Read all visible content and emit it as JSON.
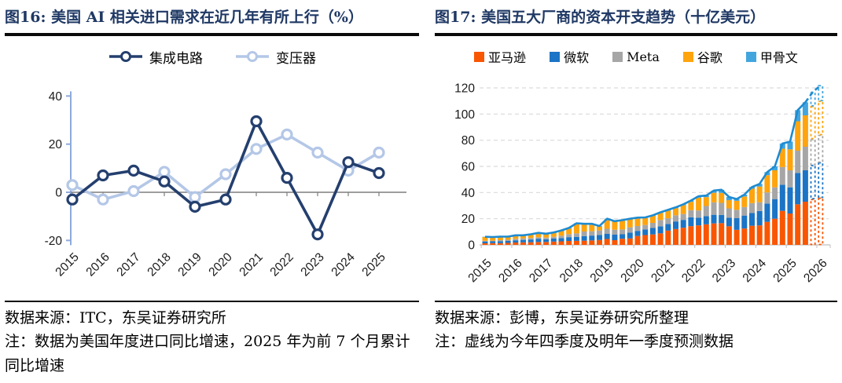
{
  "left_panel": {
    "title": "图16:  美国 AI 相关进口需求在近几年有所上行（%）",
    "source": "数据来源：ITC，东吴证券研究所",
    "note": "注：数据为美国年度进口同比增速，2025 年为前 7 个月累计同比增速"
  },
  "right_panel": {
    "title": "图17:  美国五大厂商的资本开支趋势（十亿美元）",
    "source": "数据来源：彭博，东吴证券研究所整理",
    "note": "注：虚线为今年四季度及明年一季度预测数据"
  },
  "chart_data": [
    {
      "type": "line",
      "title": "美国 AI 相关进口需求在近几年有所上行（%）",
      "categories": [
        "2015",
        "2016",
        "2017",
        "2018",
        "2019",
        "2020",
        "2021",
        "2022",
        "2023",
        "2024",
        "2025"
      ],
      "series": [
        {
          "name": "集成电路",
          "color": "#243F6E",
          "values": [
            -3,
            7,
            9,
            4.5,
            -6,
            -3,
            29.5,
            6,
            -17.5,
            12.5,
            8
          ]
        },
        {
          "name": "变压器",
          "color": "#B4C7E7",
          "values": [
            3,
            -3,
            0.5,
            8.5,
            -2,
            7.5,
            18,
            24,
            16.5,
            9,
            16.5
          ]
        }
      ],
      "ylim": [
        -20,
        40
      ],
      "yticks": [
        -20,
        0,
        20,
        40
      ],
      "legend_position": "top",
      "grid": false,
      "axis_color": "#8EAADB",
      "zero_line_color": "#7F7F7F"
    },
    {
      "type": "bar",
      "stacked": true,
      "title": "美国五大厂商的资本开支趋势（十亿美元）",
      "categories": [
        "2015Q1",
        "2015Q2",
        "2015Q3",
        "2015Q4",
        "2016Q1",
        "2016Q2",
        "2016Q3",
        "2016Q4",
        "2017Q1",
        "2017Q2",
        "2017Q3",
        "2017Q4",
        "2018Q1",
        "2018Q2",
        "2018Q3",
        "2018Q4",
        "2019Q1",
        "2019Q2",
        "2019Q3",
        "2019Q4",
        "2020Q1",
        "2020Q2",
        "2020Q3",
        "2020Q4",
        "2021Q1",
        "2021Q2",
        "2021Q3",
        "2021Q4",
        "2022Q1",
        "2022Q2",
        "2022Q3",
        "2022Q4",
        "2023Q1",
        "2023Q2",
        "2023Q3",
        "2023Q4",
        "2024Q1",
        "2024Q2",
        "2024Q3",
        "2024Q4",
        "2025Q1",
        "2025Q2",
        "2025Q3",
        "2025Q4",
        "2026Q1"
      ],
      "x_tick_labels": [
        "2015",
        "2016",
        "2017",
        "2018",
        "2019",
        "2020",
        "2021",
        "2022",
        "2023",
        "2024",
        "2025",
        "2026"
      ],
      "series": [
        {
          "name": "亚马逊",
          "color": "#F95602",
          "values": [
            1.2,
            1.3,
            1.3,
            1.5,
            1.8,
            1.9,
            2.0,
            2.2,
            2.2,
            2.5,
            2.7,
            3.0,
            3.1,
            3.2,
            3.4,
            3.7,
            4.5,
            3.6,
            4.7,
            4.9,
            6.8,
            7.5,
            8.0,
            8.8,
            10.9,
            12.1,
            13.1,
            14.3,
            14.9,
            15.7,
            16.4,
            16.6,
            14.2,
            11.5,
            12.5,
            14.6,
            14.9,
            17.6,
            20.0,
            26.0,
            24.0,
            31.0,
            33.0,
            35.0,
            36.0
          ]
        },
        {
          "name": "微软",
          "color": "#1B74C5",
          "values": [
            1.4,
            1.4,
            1.5,
            1.5,
            1.7,
            1.9,
            2.1,
            2.5,
            2.1,
            2.3,
            2.5,
            2.9,
            2.9,
            3.5,
            3.7,
            3.9,
            3.9,
            4.2,
            3.4,
            4.5,
            3.9,
            4.3,
            4.9,
            5.4,
            5.1,
            5.8,
            6.0,
            6.8,
            5.9,
            6.3,
            6.6,
            6.3,
            6.6,
            8.9,
            9.9,
            9.7,
            11.0,
            14.0,
            15.0,
            20.0,
            20.0,
            24.0,
            24.0,
            26.0,
            27.0
          ]
        },
        {
          "name": "Meta",
          "color": "#A6A6A6",
          "values": [
            0.5,
            0.5,
            0.8,
            0.9,
            1.1,
            1.2,
            1.1,
            1.1,
            1.3,
            1.4,
            1.8,
            2.3,
            2.8,
            3.5,
            3.3,
            3.4,
            3.9,
            3.8,
            3.7,
            4.0,
            3.7,
            3.4,
            3.9,
            4.8,
            4.3,
            4.7,
            4.5,
            5.4,
            5.5,
            7.7,
            9.5,
            9.2,
            7.1,
            6.4,
            6.5,
            7.6,
            6.7,
            8.5,
            9.0,
            13.5,
            13.0,
            17.0,
            18.0,
            20.0,
            21.0
          ]
        },
        {
          "name": "谷歌",
          "color": "#FFA40D",
          "values": [
            2.9,
            2.5,
            2.4,
            2.1,
            2.4,
            2.1,
            2.6,
            3.1,
            2.5,
            2.8,
            3.5,
            4.3,
            7.3,
            5.5,
            5.3,
            3.1,
            7.3,
            6.1,
            6.7,
            6.1,
            6.0,
            5.4,
            5.4,
            5.5,
            5.9,
            5.5,
            6.8,
            6.4,
            9.8,
            6.8,
            7.3,
            7.6,
            6.3,
            6.9,
            8.1,
            11.0,
            12.0,
            13.2,
            13.0,
            14.0,
            16.0,
            22.5,
            24.0,
            25.0,
            26.0
          ]
        },
        {
          "name": "甲骨文",
          "color": "#42A5DE",
          "values": [
            0.2,
            0.3,
            0.3,
            0.3,
            0.3,
            0.2,
            0.3,
            0.3,
            0.4,
            0.5,
            0.5,
            0.5,
            0.4,
            0.4,
            0.4,
            0.3,
            0.4,
            0.4,
            0.4,
            0.5,
            0.4,
            0.4,
            0.4,
            0.4,
            0.6,
            0.6,
            0.6,
            1.0,
            1.1,
            1.2,
            1.7,
            2.4,
            2.4,
            1.3,
            1.4,
            1.3,
            2.0,
            2.3,
            3.0,
            4.0,
            6.0,
            8.5,
            10.0,
            11.0,
            12.0
          ]
        }
      ],
      "total_line_color": "#1E8BD1",
      "forecast_quarters": [
        "2025Q4",
        "2026Q1"
      ],
      "ylim": [
        0,
        120
      ],
      "yticks": [
        0,
        20,
        40,
        60,
        80,
        100,
        120
      ],
      "legend_position": "top",
      "grid": true,
      "grid_color": "#D9D9D9"
    }
  ]
}
